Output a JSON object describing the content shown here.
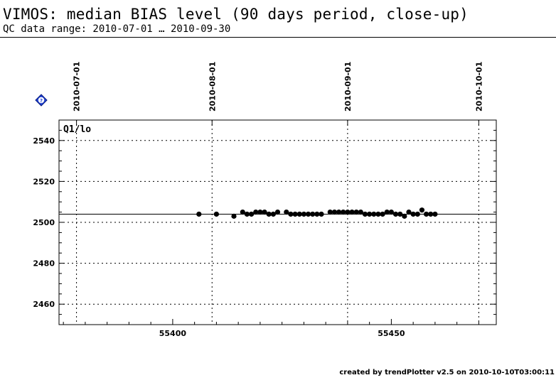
{
  "header": {
    "title": "VIMOS: median BIAS level (90 days period, close-up)",
    "subtitle": "QC data range: 2010-07-01 … 2010-09-30"
  },
  "footer": {
    "credit": "created by trendPlotter v2.5 on 2010-10-10T03:00:11"
  },
  "help_icon": "help-icon",
  "chart_data": {
    "type": "scatter",
    "title": "VIMOS: median BIAS level (90 days period, close-up)",
    "panel_label": "Q1/lo",
    "xlim": [
      55374,
      55474
    ],
    "ylim": [
      2450,
      2550
    ],
    "x_ticks": [
      55400,
      55450
    ],
    "y_ticks": [
      2460,
      2480,
      2500,
      2520,
      2540
    ],
    "top_date_ticks": [
      {
        "label": "2010-07-01",
        "mjd": 55378
      },
      {
        "label": "2010-08-01",
        "mjd": 55409
      },
      {
        "label": "2010-09-01",
        "mjd": 55440
      },
      {
        "label": "2010-10-01",
        "mjd": 55470
      }
    ],
    "reference_line": 2504,
    "grid": true,
    "colors": {
      "points": "#000000",
      "grid": "#000000"
    },
    "series": [
      {
        "x": [
          55406,
          55410,
          55414,
          55416,
          55417,
          55418,
          55419,
          55420,
          55421,
          55422,
          55423,
          55424,
          55426,
          55427,
          55428,
          55429,
          55430,
          55431,
          55432,
          55433,
          55434,
          55436,
          55437,
          55438,
          55439,
          55440,
          55441,
          55442,
          55443,
          55444,
          55445,
          55446,
          55447,
          55448,
          55449,
          55450,
          55451,
          55452,
          55453,
          55454,
          55455,
          55456,
          55457,
          55458,
          55459,
          55460
        ],
        "y": [
          2504,
          2504,
          2503,
          2505,
          2504,
          2504,
          2505,
          2505,
          2505,
          2504,
          2504,
          2505,
          2505,
          2504,
          2504,
          2504,
          2504,
          2504,
          2504,
          2504,
          2504,
          2505,
          2505,
          2505,
          2505,
          2505,
          2505,
          2505,
          2505,
          2504,
          2504,
          2504,
          2504,
          2504,
          2505,
          2505,
          2504,
          2504,
          2503,
          2505,
          2504,
          2504,
          2506,
          2504,
          2504,
          2504
        ]
      }
    ]
  }
}
